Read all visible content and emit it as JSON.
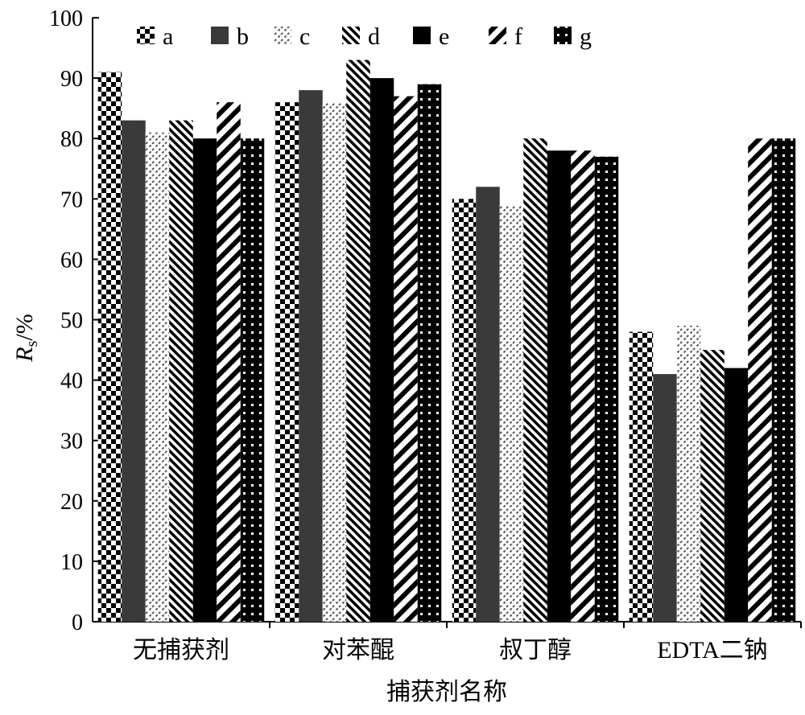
{
  "chart_data": {
    "type": "bar",
    "title": "",
    "xlabel": "捕获剂名称",
    "ylabel_main": "R",
    "ylabel_sub": "s",
    "ylabel_suffix": "/%",
    "ylim": [
      0,
      100
    ],
    "yticks": [
      "0",
      "10",
      "20",
      "30",
      "40",
      "50",
      "60",
      "70",
      "80",
      "90",
      "100"
    ],
    "grid": false,
    "legend_position": "top",
    "categories": [
      "无捕获剂",
      "对苯醌",
      "叔丁醇",
      "EDTA二钠"
    ],
    "series": [
      {
        "name": "a",
        "pattern": "checker",
        "values": [
          91,
          86,
          70,
          48
        ]
      },
      {
        "name": "b",
        "pattern": "solid-gray",
        "values": [
          83,
          88,
          72,
          41
        ]
      },
      {
        "name": "c",
        "pattern": "light-diagonal",
        "values": [
          81,
          86,
          69,
          49
        ]
      },
      {
        "name": "d",
        "pattern": "back-diagonal",
        "values": [
          83,
          93,
          80,
          45
        ]
      },
      {
        "name": "e",
        "pattern": "solid-black",
        "values": [
          80,
          90,
          78,
          42
        ]
      },
      {
        "name": "f",
        "pattern": "wide-diagonal",
        "values": [
          86,
          87,
          78,
          80
        ]
      },
      {
        "name": "g",
        "pattern": "dots",
        "values": [
          80,
          89,
          77,
          80
        ]
      }
    ],
    "colors": {
      "b": "#3a3a3a",
      "e": "#000000"
    }
  }
}
